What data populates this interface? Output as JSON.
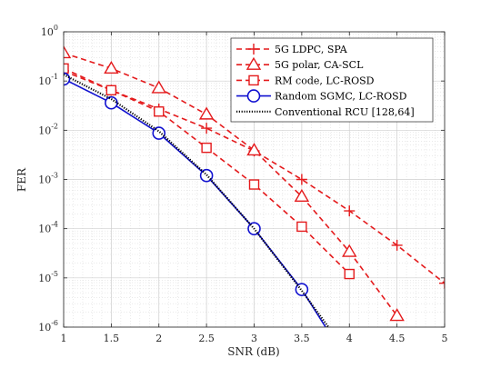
{
  "chart_data": {
    "type": "line",
    "title": "",
    "xlabel": "SNR (dB)",
    "ylabel": "FER",
    "xlim": [
      1,
      5
    ],
    "ylim": [
      1e-06,
      1
    ],
    "yscale": "log",
    "grid": true,
    "minor_grid": true,
    "legend_position": "top-right",
    "x_ticks": [
      "1",
      "1.5",
      "2",
      "2.5",
      "3",
      "3.5",
      "4",
      "4.5",
      "5"
    ],
    "y_ticks": [
      {
        "base": "10",
        "exp": "0",
        "value": 1
      },
      {
        "base": "10",
        "exp": "-1",
        "value": 0.1
      },
      {
        "base": "10",
        "exp": "-2",
        "value": 0.01
      },
      {
        "base": "10",
        "exp": "-3",
        "value": 0.001
      },
      {
        "base": "10",
        "exp": "-4",
        "value": 0.0001
      },
      {
        "base": "10",
        "exp": "-5",
        "value": 1e-05
      },
      {
        "base": "10",
        "exp": "-6",
        "value": 1e-06
      }
    ],
    "series": [
      {
        "name": "5G LDPC, SPA",
        "color": "#e41a1c",
        "dash": "dashed",
        "marker": "plus",
        "x": [
          1,
          1.5,
          2,
          2.5,
          3,
          3.5,
          4,
          4.5,
          5
        ],
        "y": [
          0.16,
          0.065,
          0.027,
          0.011,
          0.0038,
          0.001,
          0.00023,
          4.6e-05,
          7.8e-06
        ]
      },
      {
        "name": "5G polar, CA-SCL",
        "color": "#e41a1c",
        "dash": "dashed",
        "marker": "triangle",
        "x": [
          1,
          1.5,
          2,
          2.5,
          3,
          3.5,
          4,
          4.5
        ],
        "y": [
          0.37,
          0.18,
          0.072,
          0.021,
          0.0039,
          0.00045,
          3.4e-05,
          1.7e-06
        ]
      },
      {
        "name": "RM code, LC-ROSD",
        "color": "#e41a1c",
        "dash": "dashed",
        "marker": "square",
        "x": [
          1,
          1.5,
          2,
          2.5,
          3,
          3.5,
          4
        ],
        "y": [
          0.18,
          0.065,
          0.024,
          0.0044,
          0.00079,
          0.00011,
          1.2e-05
        ]
      },
      {
        "name": "Random SGMC, LC-ROSD",
        "color": "#1010d0",
        "dash": "solid",
        "marker": "circle",
        "x": [
          1,
          1.5,
          2,
          2.5,
          3,
          3.5
        ],
        "y": [
          0.11,
          0.036,
          0.0087,
          0.0012,
          0.0001,
          5.8e-06
        ],
        "tail_x": [
          3.75
        ],
        "tail_y": [
          1e-06
        ]
      },
      {
        "name": "Conventional RCU [128,64]",
        "color": "#000000",
        "dash": "dotted",
        "marker": "none",
        "x": [
          1,
          1.5,
          2,
          2.5,
          3,
          3.5,
          3.78
        ],
        "y": [
          0.135,
          0.043,
          0.0095,
          0.00125,
          0.0001,
          5.5e-06,
          1e-06
        ]
      }
    ]
  }
}
